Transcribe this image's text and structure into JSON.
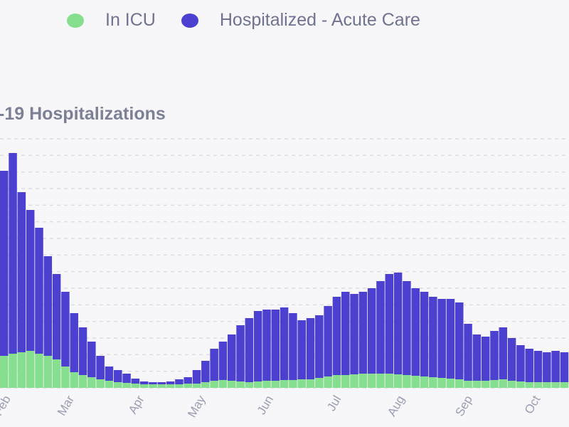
{
  "chart_data": {
    "type": "bar",
    "stacked": true,
    "title": "-19 Hospitalizations",
    "xlabel": "",
    "ylabel": "",
    "ylim": [
      0,
      350
    ],
    "xlim": [
      0,
      260
    ],
    "grid": true,
    "grid_lines": 15,
    "legend_position": "top",
    "x_unit": "day index (4-day bins)",
    "x_ticks": [
      {
        "label": "Feb",
        "x": 5
      },
      {
        "label": "Mar",
        "x": 34
      },
      {
        "label": "Apr",
        "x": 66
      },
      {
        "label": "May",
        "x": 94
      },
      {
        "label": "Jun",
        "x": 125
      },
      {
        "label": "Jul",
        "x": 156
      },
      {
        "label": "Aug",
        "x": 185
      },
      {
        "label": "Sep",
        "x": 216
      },
      {
        "label": "Oct",
        "x": 247
      }
    ],
    "bin_width": 4,
    "series": [
      {
        "name": "In ICU",
        "color": "#86df8e",
        "values": [
          45,
          48,
          50,
          52,
          48,
          45,
          40,
          30,
          22,
          18,
          15,
          12,
          10,
          8,
          7,
          6,
          5,
          5,
          5,
          5,
          5,
          6,
          6,
          8,
          10,
          11,
          10,
          9,
          8,
          9,
          10,
          10,
          11,
          11,
          12,
          12,
          14,
          16,
          18,
          18,
          19,
          20,
          20,
          20,
          20,
          19,
          18,
          17,
          16,
          15,
          14,
          13,
          12,
          10,
          10,
          10,
          11,
          12,
          10,
          9,
          8,
          8,
          8,
          8,
          8
        ]
      },
      {
        "name": "Hospitalized - Acute Care",
        "color": "#4b40d0",
        "values": [
          260,
          282,
          225,
          198,
          177,
          140,
          120,
          105,
          83,
          67,
          50,
          33,
          20,
          17,
          13,
          7,
          4,
          3,
          3,
          4,
          7,
          9,
          19,
          30,
          45,
          54,
          65,
          79,
          90,
          99,
          100,
          100,
          102,
          94,
          83,
          86,
          88,
          99,
          110,
          117,
          113,
          115,
          120,
          130,
          140,
          143,
          132,
          123,
          119,
          113,
          111,
          112,
          108,
          80,
          65,
          62,
          69,
          73,
          60,
          51,
          47,
          44,
          42,
          44,
          42
        ]
      }
    ]
  }
}
